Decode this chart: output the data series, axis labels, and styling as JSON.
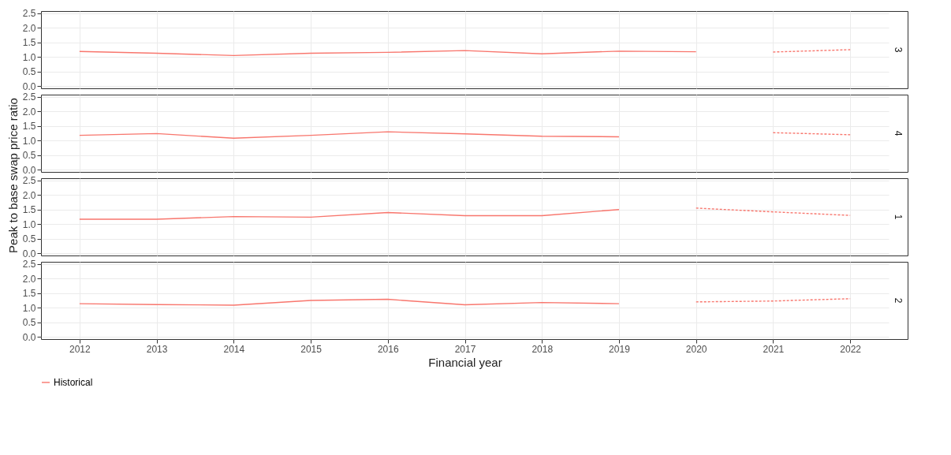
{
  "chart_data": [
    {
      "type": "line",
      "title": "3",
      "xlim": [
        2011.5,
        2022.5
      ],
      "xticks": [
        2012,
        2013,
        2014,
        2015,
        2016,
        2017,
        2018,
        2019,
        2020,
        2021,
        2022
      ],
      "ylim": [
        -0.07,
        2.57
      ],
      "yticks": [
        {
          "value": 0,
          "label": "0.0"
        },
        0.5,
        {
          "value": 1,
          "label": "1.0"
        },
        1.5,
        {
          "value": 2,
          "label": "2.0"
        },
        2.5
      ],
      "grid": true,
      "tick_labels": "y",
      "series": [
        {
          "color": "#f8766d",
          "line_style": "solid",
          "x": [
            2012,
            2013,
            2014,
            2015,
            2016,
            2017,
            2018,
            2019,
            2020
          ],
          "values": [
            1.19,
            1.13,
            1.05,
            1.13,
            1.16,
            1.22,
            1.11,
            1.2,
            1.18
          ]
        },
        {
          "color": "#f8766d",
          "line_style": "dashed",
          "x": [
            2021,
            2022
          ],
          "values": [
            1.17,
            1.25
          ]
        }
      ]
    },
    {
      "type": "line",
      "title": "4",
      "ylabel": "Peak to base swap price ratio",
      "xlim": [
        2011.5,
        2022.5
      ],
      "xticks": [
        2012,
        2013,
        2014,
        2015,
        2016,
        2017,
        2018,
        2019,
        2020,
        2021,
        2022
      ],
      "ylim": [
        -0.07,
        2.57
      ],
      "yticks": [
        {
          "value": 0,
          "label": "0.0"
        },
        0.5,
        {
          "value": 1,
          "label": "1.0"
        },
        1.5,
        {
          "value": 2,
          "label": "2.0"
        },
        2.5
      ],
      "grid": true,
      "tick_labels": "y",
      "series": [
        {
          "color": "#f8766d",
          "line_style": "solid",
          "x": [
            2012,
            2013,
            2014,
            2015,
            2016,
            2017,
            2018,
            2019
          ],
          "values": [
            1.18,
            1.24,
            1.08,
            1.18,
            1.3,
            1.23,
            1.15,
            1.13
          ]
        },
        {
          "color": "#f8766d",
          "line_style": "dashed",
          "x": [
            2021,
            2022
          ],
          "values": [
            1.27,
            1.2
          ]
        }
      ]
    },
    {
      "type": "line",
      "title": "1",
      "xlim": [
        2011.5,
        2022.5
      ],
      "xticks": [
        2012,
        2013,
        2014,
        2015,
        2016,
        2017,
        2018,
        2019,
        2020,
        2021,
        2022
      ],
      "ylim": [
        -0.07,
        2.57
      ],
      "yticks": [
        {
          "value": 0,
          "label": "0.0"
        },
        0.5,
        {
          "value": 1,
          "label": "1.0"
        },
        1.5,
        {
          "value": 2,
          "label": "2.0"
        },
        2.5
      ],
      "grid": true,
      "tick_labels": "y",
      "series": [
        {
          "color": "#f8766d",
          "line_style": "solid",
          "x": [
            2012,
            2013,
            2014,
            2015,
            2016,
            2017,
            2018,
            2019
          ],
          "values": [
            1.17,
            1.17,
            1.26,
            1.24,
            1.4,
            1.29,
            1.29,
            1.5
          ]
        },
        {
          "color": "#f8766d",
          "line_style": "dashed",
          "x": [
            2020,
            2021,
            2022
          ],
          "values": [
            1.55,
            1.42,
            1.3
          ]
        }
      ]
    },
    {
      "type": "line",
      "title": "2",
      "xlabel": "Financial year",
      "xlim": [
        2011.5,
        2022.5
      ],
      "xticks": [
        2012,
        2013,
        2014,
        2015,
        2016,
        2017,
        2018,
        2019,
        2020,
        2021,
        2022
      ],
      "ylim": [
        -0.07,
        2.57
      ],
      "yticks": [
        {
          "value": 0,
          "label": "0.0"
        },
        0.5,
        {
          "value": 1,
          "label": "1.0"
        },
        1.5,
        {
          "value": 2,
          "label": "2.0"
        },
        2.5
      ],
      "grid": true,
      "legend": "bottom",
      "series": [
        {
          "name": "Historical",
          "color": "#f8766d",
          "line_style": "solid",
          "x": [
            2012,
            2013,
            2014,
            2015,
            2016,
            2017,
            2018,
            2019
          ],
          "values": [
            1.14,
            1.11,
            1.09,
            1.25,
            1.29,
            1.1,
            1.18,
            1.14
          ]
        },
        {
          "color": "#f8766d",
          "line_style": "dashed",
          "x": [
            2020,
            2021,
            2022
          ],
          "values": [
            1.2,
            1.23,
            1.31
          ]
        }
      ]
    }
  ]
}
